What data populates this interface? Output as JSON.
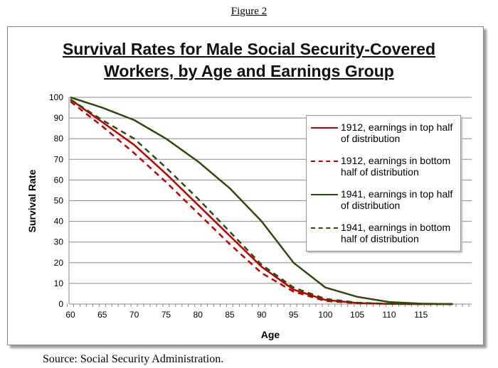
{
  "figure_label": "Figure 2",
  "source": "Source: Social Security Administration.",
  "chart_data": {
    "type": "line",
    "title": "Survival Rates for Male Social Security-Covered Workers, by Age and Earnings Group",
    "xlabel": "Age",
    "ylabel": "Survival Rate",
    "ylim": [
      0,
      100
    ],
    "yticks": [
      0,
      10,
      20,
      30,
      40,
      50,
      60,
      70,
      80,
      90,
      100
    ],
    "xlim": [
      60,
      123
    ],
    "xticks": [
      60,
      65,
      70,
      75,
      80,
      85,
      90,
      95,
      100,
      105,
      110,
      115
    ],
    "grid": "horizontal",
    "legend": "right",
    "x": [
      60,
      65,
      70,
      75,
      80,
      85,
      90,
      95,
      100,
      105,
      110,
      115,
      120
    ],
    "series": [
      {
        "name": "1912, earnings in top half of distribution",
        "color": "#c00000",
        "dash": false,
        "values": [
          99,
          88,
          77,
          63,
          48,
          33,
          18,
          7,
          2,
          0.5,
          0.1,
          0,
          0
        ]
      },
      {
        "name": "1912, earnings in bottom half of distribution",
        "color": "#c00000",
        "dash": true,
        "values": [
          98,
          86,
          73,
          59,
          44,
          29,
          15,
          6,
          1.5,
          0.4,
          0.1,
          0,
          0
        ]
      },
      {
        "name": "1941, earnings in top half of distribution",
        "color": "#2e4a0f",
        "dash": false,
        "values": [
          100,
          95,
          89,
          80,
          69,
          56,
          40,
          20,
          8,
          3.5,
          1,
          0.2,
          0
        ]
      },
      {
        "name": "1941, earnings in bottom half of distribution",
        "color": "#2e4a0f",
        "dash": true,
        "values": [
          99,
          89,
          80,
          66,
          51,
          35,
          19,
          8,
          2.5,
          0.7,
          0.1,
          0,
          0
        ]
      }
    ]
  }
}
